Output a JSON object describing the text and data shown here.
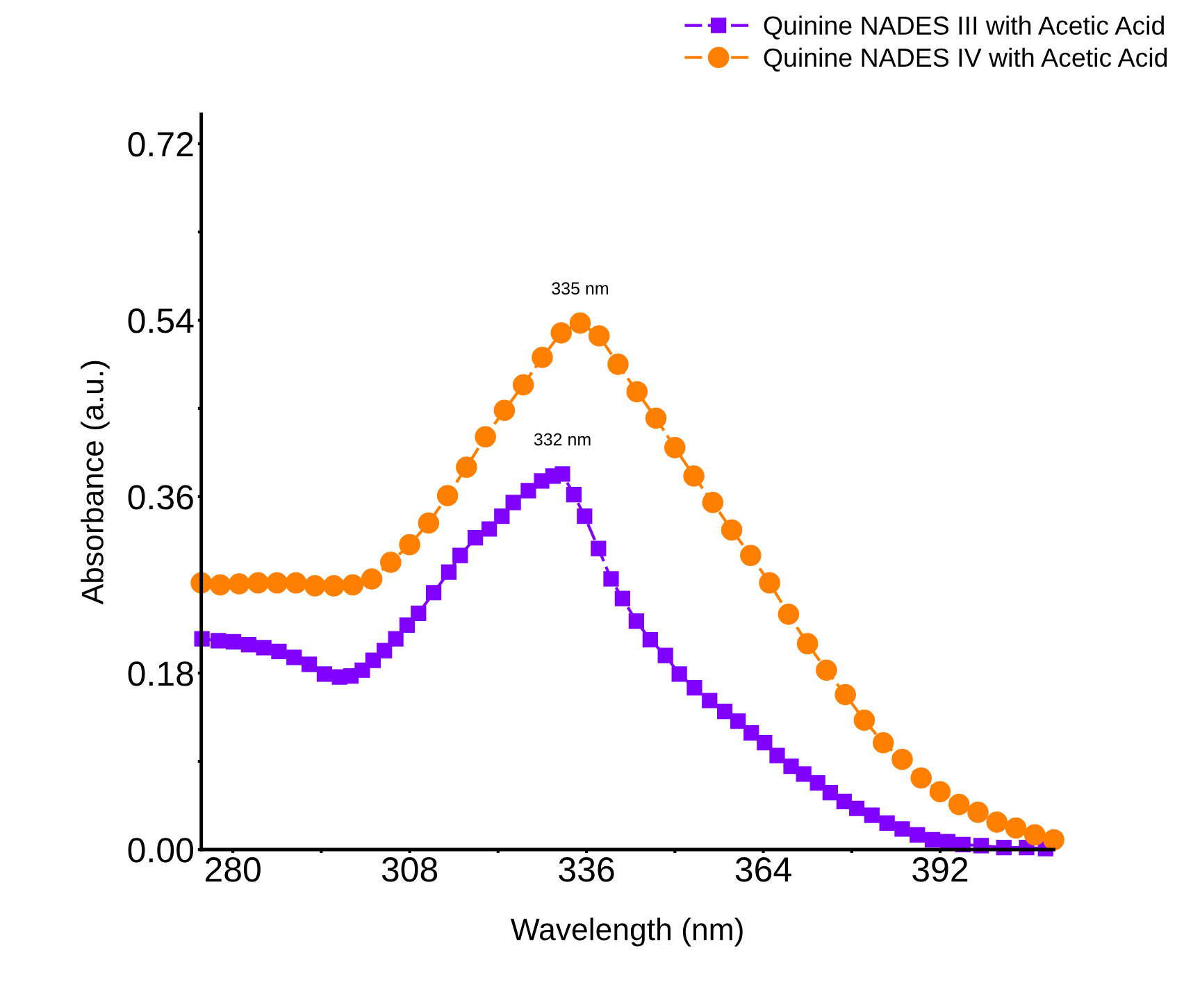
{
  "chart_data": {
    "type": "line",
    "xlabel": "Wavelength (nm)",
    "ylabel": "Absorbance (a.u.)",
    "xlim": [
      275,
      410
    ],
    "ylim": [
      0,
      0.75
    ],
    "xticks": [
      280,
      {
        "value": 294,
        "label": null
      },
      308,
      {
        "value": 322,
        "label": null
      },
      336,
      {
        "value": 350,
        "label": null
      },
      364,
      {
        "value": 378,
        "label": null
      },
      392,
      {
        "value": 406,
        "label": null
      }
    ],
    "yticks": [
      {
        "value": 0,
        "label": "0.00"
      },
      {
        "value": 0.09,
        "label": null
      },
      0.18,
      {
        "value": 0.27,
        "label": null
      },
      0.36,
      {
        "value": 0.45,
        "label": null
      },
      0.54,
      {
        "value": 0.63,
        "label": null
      },
      0.72
    ],
    "grid": false,
    "legend": "top right",
    "line_style": "dashed",
    "series": [
      {
        "name": "Quinine NADES III with Acetic Acid",
        "color": "#8000ff",
        "marker": "square",
        "x": [
          275.1,
          277.7,
          280.1,
          282.5,
          284.9,
          287.3,
          289.7,
          292.1,
          294.5,
          296.9,
          298.7,
          300.5,
          302.2,
          304.0,
          305.8,
          307.6,
          309.4,
          311.8,
          314.2,
          316.0,
          318.4,
          320.6,
          322.6,
          324.4,
          326.8,
          328.9,
          330.7,
          332.2,
          334.0,
          335.7,
          337.9,
          339.9,
          341.7,
          343.9,
          346.1,
          348.5,
          350.7,
          353.1,
          355.5,
          357.9,
          360.0,
          362.1,
          364.2,
          366.2,
          368.4,
          370.4,
          372.6,
          374.6,
          376.8,
          378.8,
          381.2,
          383.6,
          386.0,
          388.4,
          390.8,
          393.2,
          395.6,
          398.5,
          402.1,
          405.7,
          408.7
        ],
        "values": [
          0.215,
          0.213,
          0.212,
          0.209,
          0.206,
          0.202,
          0.196,
          0.189,
          0.179,
          0.176,
          0.177,
          0.183,
          0.193,
          0.203,
          0.215,
          0.229,
          0.241,
          0.262,
          0.283,
          0.3,
          0.318,
          0.327,
          0.34,
          0.354,
          0.366,
          0.376,
          0.381,
          0.383,
          0.362,
          0.34,
          0.307,
          0.276,
          0.256,
          0.233,
          0.214,
          0.198,
          0.179,
          0.165,
          0.152,
          0.141,
          0.131,
          0.119,
          0.109,
          0.096,
          0.085,
          0.077,
          0.068,
          0.058,
          0.049,
          0.042,
          0.035,
          0.027,
          0.021,
          0.015,
          0.01,
          0.008,
          0.005,
          0.004,
          0.002,
          0.002,
          0.001
        ]
      },
      {
        "name": "Quinine NADES IV with Acetic Acid",
        "color": "#ff8000",
        "marker": "circle",
        "x": [
          275,
          278,
          281,
          284,
          287,
          290,
          293,
          296,
          299,
          302,
          305,
          308,
          311,
          314,
          317,
          320,
          323,
          326,
          329,
          332,
          335,
          338,
          341,
          344,
          347,
          350,
          353,
          356,
          359,
          362,
          365,
          368,
          371,
          374,
          377,
          380,
          383,
          386,
          389,
          392,
          395,
          398,
          401,
          404,
          407,
          410
        ],
        "values": [
          0.272,
          0.27,
          0.271,
          0.272,
          0.272,
          0.272,
          0.269,
          0.269,
          0.27,
          0.276,
          0.293,
          0.311,
          0.333,
          0.361,
          0.39,
          0.421,
          0.448,
          0.474,
          0.502,
          0.527,
          0.537,
          0.524,
          0.495,
          0.467,
          0.44,
          0.41,
          0.381,
          0.354,
          0.326,
          0.3,
          0.272,
          0.24,
          0.21,
          0.183,
          0.158,
          0.132,
          0.109,
          0.092,
          0.073,
          0.059,
          0.046,
          0.038,
          0.028,
          0.022,
          0.015,
          0.01
        ]
      }
    ],
    "annotations": [
      {
        "text": "332 nm",
        "x": 332.2,
        "y": 0.383
      },
      {
        "text": "335 nm",
        "x": 335,
        "y": 0.537
      }
    ]
  }
}
